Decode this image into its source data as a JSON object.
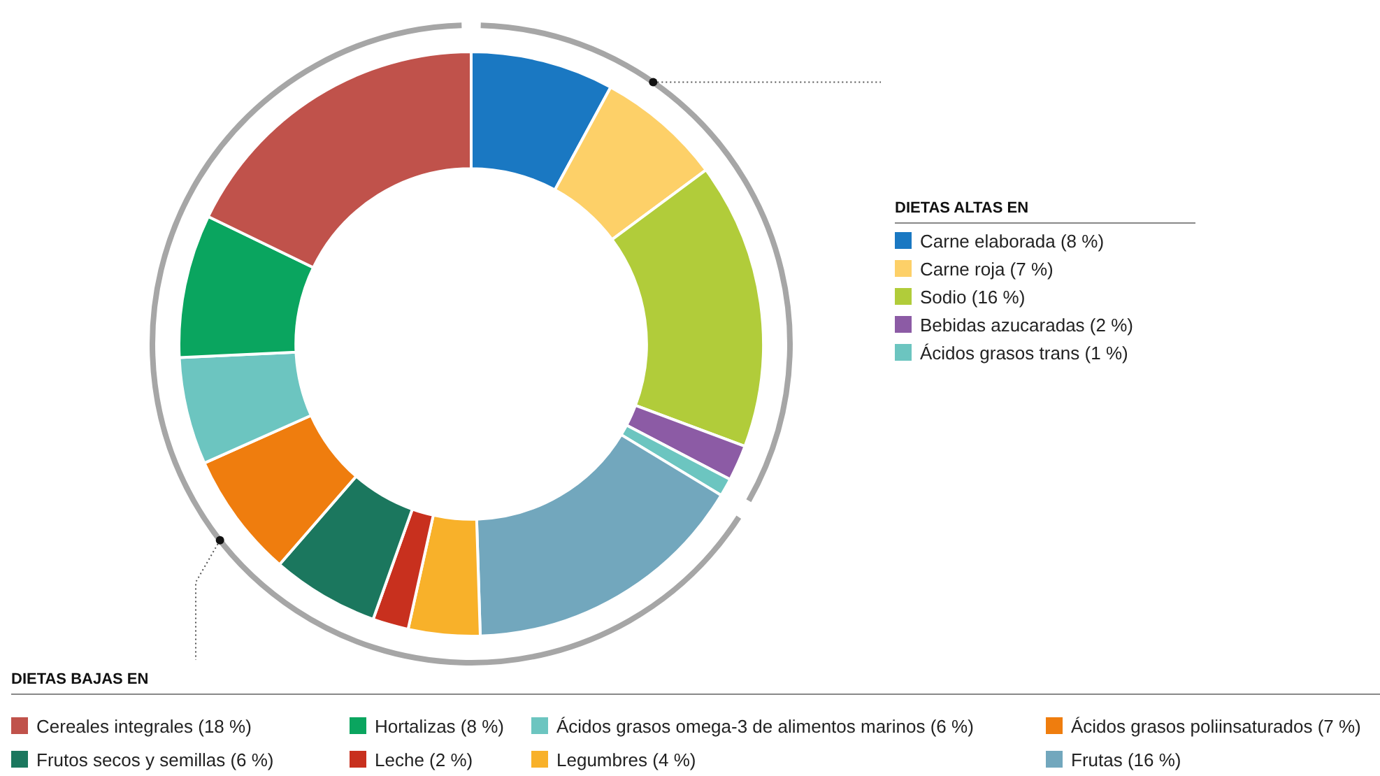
{
  "chart_data": {
    "type": "donut",
    "categories": [
      "Carne elaborada (8 %)",
      "Carne roja (7 %)",
      "Sodio (16 %)",
      "Bebidas azucaradas (2 %)",
      "Ácidos grasos trans (1 %)",
      "Frutas (16 %)",
      "Legumbres (4 %)",
      "Leche (2 %)",
      "Frutos secos y semillas (6 %)",
      "Ácidos grasos poliinsaturados (7 %)",
      "Ácidos grasos omega-3 de alimentos marinos (6 %)",
      "Hortalizas (8 %)",
      "Cereales integrales (18 %)"
    ],
    "values": [
      8,
      7,
      16,
      2,
      1,
      16,
      4,
      2,
      6,
      7,
      6,
      8,
      18
    ],
    "colors": [
      "#1a78c2",
      "#fdd068",
      "#b1cc3a",
      "#8c5ba5",
      "#6cc5c0",
      "#72a7bd",
      "#f8b12a",
      "#c8301e",
      "#1b775e",
      "#ef7d0e",
      "#6cc5c0",
      "#0aa55f",
      "#c0524b"
    ],
    "annotations": [
      {
        "text": "DIETAS ALTAS EN",
        "x": "Carne elaborada (8 %)"
      },
      {
        "text": "DIETAS BAJAS EN",
        "x": "Frutas (16 %)"
      }
    ],
    "legend": "bottom"
  }
}
